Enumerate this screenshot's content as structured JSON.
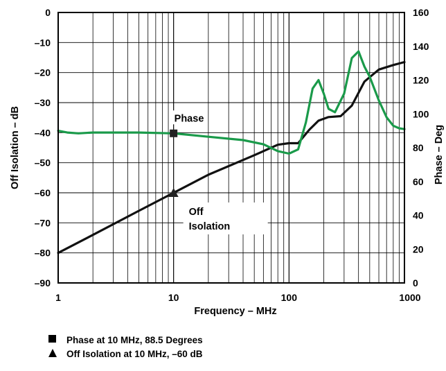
{
  "chart_data": {
    "type": "line",
    "title": "",
    "xlabel": "Frequency – MHz",
    "ylabel": "Off Isolation – dB",
    "y2label": "Phase – Deg",
    "xscale": "log",
    "xlim": [
      1,
      1000
    ],
    "ylim": [
      -90,
      0
    ],
    "y2lim": [
      0,
      160
    ],
    "grid": true,
    "x_ticks": [
      "1",
      "10",
      "100",
      "1000"
    ],
    "y_ticks": [
      "0",
      "–10",
      "–20",
      "–30",
      "–40",
      "–50",
      "–60",
      "–70",
      "–80",
      "–90"
    ],
    "y2_ticks": [
      "160",
      "140",
      "120",
      "100",
      "80",
      "60",
      "40",
      "20",
      "0"
    ],
    "series": [
      {
        "label": "Off Isolation",
        "axis": "left",
        "color": "#111111",
        "unit": "dB",
        "x": [
          1,
          2,
          5,
          10,
          20,
          50,
          80,
          100,
          120,
          150,
          180,
          220,
          280,
          350,
          450,
          600,
          800,
          1000
        ],
        "y": [
          -80,
          -74,
          -66,
          -60,
          -54,
          -47.5,
          -44,
          -43.5,
          -43.5,
          -39,
          -36,
          -34.8,
          -34.5,
          -31,
          -23,
          -19,
          -17.5,
          -16.5
        ]
      },
      {
        "label": "Phase",
        "axis": "right",
        "color": "#1a9a4a",
        "unit": "Deg",
        "x": [
          1,
          1.2,
          1.5,
          2,
          3,
          5,
          10,
          20,
          40,
          60,
          80,
          100,
          120,
          140,
          160,
          180,
          200,
          220,
          250,
          300,
          350,
          400,
          450,
          500,
          600,
          700,
          800,
          900,
          1000
        ],
        "y": [
          90,
          89,
          88.5,
          89,
          89,
          89,
          88.5,
          86.5,
          84.5,
          82,
          78,
          76.5,
          79,
          95,
          115,
          120,
          112,
          103,
          101,
          112,
          133,
          137,
          128,
          122,
          108,
          98,
          93,
          91.5,
          91
        ]
      }
    ],
    "markers": [
      {
        "shape": "square",
        "x": 10,
        "y": 88.5,
        "axis": "right",
        "label": "Phase"
      },
      {
        "shape": "triangle",
        "x": 10,
        "y": -60,
        "axis": "left",
        "label": "Off\nIsolation"
      }
    ],
    "annotations": [
      {
        "shape": "square",
        "text": "Phase at 10 MHz, 88.5 Degrees"
      },
      {
        "shape": "triangle",
        "text": "Off Isolation at 10 MHz, –60 dB"
      }
    ]
  }
}
